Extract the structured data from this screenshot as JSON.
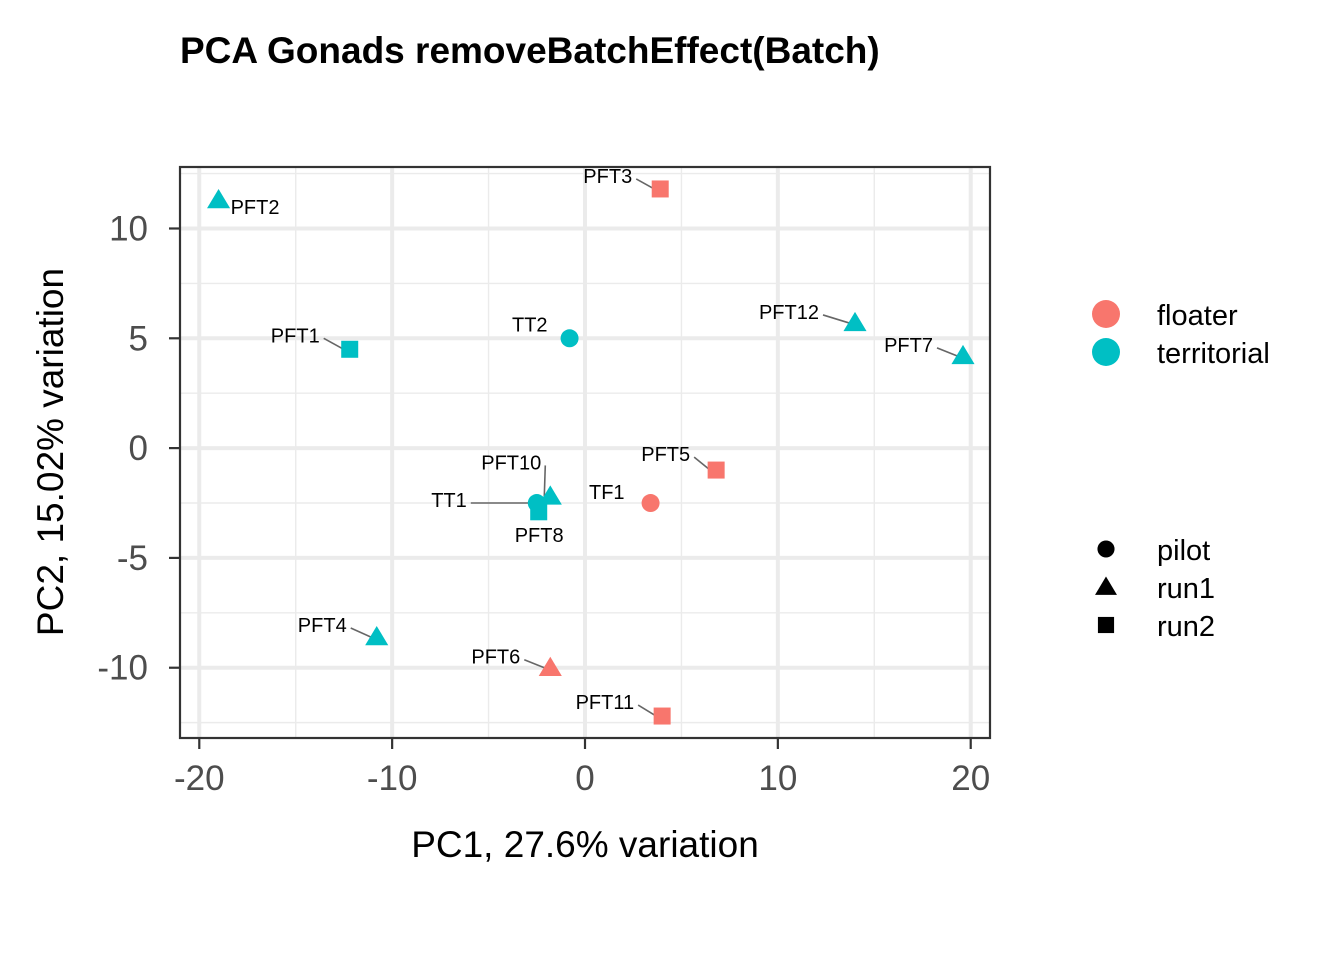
{
  "chart_data": {
    "type": "scatter",
    "title": "PCA Gonads removeBatchEffect(Batch)",
    "xlabel": "PC1, 27.6% variation",
    "ylabel": "PC2, 15.02% variation",
    "xlim": [
      -21,
      21
    ],
    "ylim": [
      -13.2,
      12.8
    ],
    "xticks": [
      -20,
      -10,
      0,
      10,
      20
    ],
    "yticks": [
      -10,
      -5,
      0,
      5,
      10
    ],
    "grid": true,
    "legend_position": "right",
    "color_legend": [
      {
        "name": "floater",
        "color": "#F8766D"
      },
      {
        "name": "territorial",
        "color": "#00BFC4"
      }
    ],
    "shape_legend": [
      {
        "name": "pilot",
        "shape": "circle"
      },
      {
        "name": "run1",
        "shape": "triangle"
      },
      {
        "name": "run2",
        "shape": "square"
      }
    ],
    "points": [
      {
        "label": "PFT2",
        "x": -19.0,
        "y": 11.3,
        "group": "territorial",
        "batch": "run1"
      },
      {
        "label": "PFT3",
        "x": 3.9,
        "y": 11.8,
        "group": "floater",
        "batch": "run2"
      },
      {
        "label": "PFT1",
        "x": -12.2,
        "y": 4.5,
        "group": "territorial",
        "batch": "run2"
      },
      {
        "label": "TT2",
        "x": -0.8,
        "y": 5.0,
        "group": "territorial",
        "batch": "pilot"
      },
      {
        "label": "PFT12",
        "x": 14.0,
        "y": 5.7,
        "group": "territorial",
        "batch": "run1"
      },
      {
        "label": "PFT7",
        "x": 19.6,
        "y": 4.2,
        "group": "territorial",
        "batch": "run1"
      },
      {
        "label": "PFT5",
        "x": 6.8,
        "y": -1.0,
        "group": "floater",
        "batch": "run2"
      },
      {
        "label": "PFT10",
        "x": -1.8,
        "y": -2.2,
        "group": "territorial",
        "batch": "run1"
      },
      {
        "label": "TF1",
        "x": 3.4,
        "y": -2.5,
        "group": "floater",
        "batch": "pilot"
      },
      {
        "label": "TT1",
        "x": -2.5,
        "y": -2.5,
        "group": "territorial",
        "batch": "pilot"
      },
      {
        "label": "PFT8",
        "x": -2.4,
        "y": -2.9,
        "group": "territorial",
        "batch": "run2"
      },
      {
        "label": "PFT4",
        "x": -10.8,
        "y": -8.6,
        "group": "territorial",
        "batch": "run1"
      },
      {
        "label": "PFT6",
        "x": -1.8,
        "y": -10.0,
        "group": "floater",
        "batch": "run1"
      },
      {
        "label": "PFT11",
        "x": 4.0,
        "y": -12.2,
        "group": "floater",
        "batch": "run2"
      }
    ]
  }
}
